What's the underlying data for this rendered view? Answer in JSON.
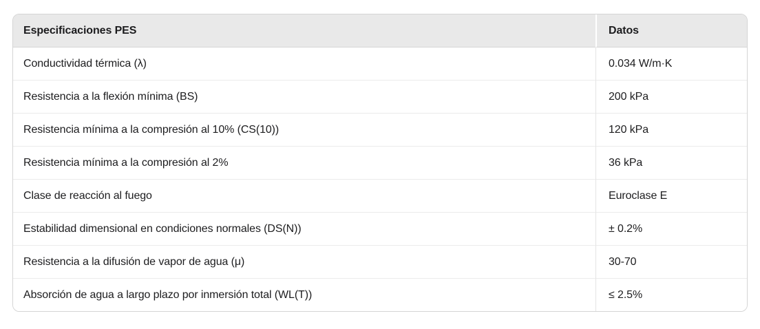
{
  "chart_data": {
    "type": "table",
    "title": "Especificaciones PES",
    "columns": [
      "Especificaciones PES",
      "Datos"
    ],
    "rows": [
      [
        "Conductividad térmica (λ)",
        "0.034 W/m·K"
      ],
      [
        "Resistencia a la flexión mínima (BS)",
        "200 kPa"
      ],
      [
        "Resistencia mínima a la compresión al 10% (CS(10))",
        "120 kPa"
      ],
      [
        "Resistencia mínima a la compresión al 2%",
        "36 kPa"
      ],
      [
        "Clase de reacción al fuego",
        "Euroclase E"
      ],
      [
        "Estabilidad dimensional en condiciones normales (DS(N))",
        "± 0.2%"
      ],
      [
        "Resistencia a la difusión de vapor de agua (μ)",
        "30-70"
      ],
      [
        "Absorción de agua a largo plazo por inmersión total (WL(T))",
        "≤ 2.5%"
      ]
    ],
    "layout": {
      "legend": "none",
      "grid": "row-and-column-borders",
      "header_row": true
    }
  },
  "colors": {
    "page_background": "#ffffff",
    "header_bg": "#e9e9e9",
    "header_border": "#d6d6d6",
    "outer_border": "#d4d4d4",
    "row_border": "#ebebeb",
    "column_divider": "#e3e3e3",
    "text": "#1c1c1e"
  }
}
